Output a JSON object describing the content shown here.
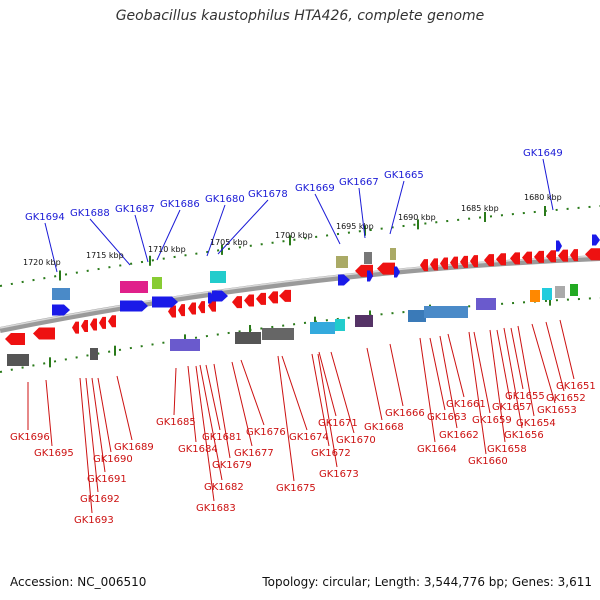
{
  "title": "Geobacillus kaustophilus HTA426, complete genome",
  "accession": "Accession: NC_006510",
  "topology": "Topology: circular; Length: 3,544,776 bp; Genes: 3,611",
  "colors": {
    "backbone": "#8c8c8c",
    "forward_label": "#1a1ad6",
    "reverse_label": "#cc1111",
    "forward_gene": "#1a1ae8",
    "reverse_gene": "#ee1111",
    "tick": "#2a7a1a"
  },
  "kbp_labels": [
    "1720 kbp",
    "1715 kbp",
    "1710 kbp",
    "1705 kbp",
    "1700 kbp",
    "1695 kbp",
    "1690 kbp",
    "1685 kbp",
    "1680 kbp"
  ],
  "forward_genes": [
    "GK1694",
    "GK1688",
    "GK1687",
    "GK1686",
    "GK1680",
    "GK1678",
    "GK1669",
    "GK1667",
    "GK1665",
    "GK1649"
  ],
  "reverse_genes": [
    "GK1696",
    "GK1695",
    "GK1690",
    "GK1691",
    "GK1692",
    "GK1693",
    "GK1689",
    "GK1685",
    "GK1684",
    "GK1681",
    "GK1679",
    "GK1682",
    "GK1683",
    "GK1676",
    "GK1677",
    "GK1674",
    "GK1675",
    "GK1672",
    "GK1673",
    "GK1671",
    "GK1670",
    "GK1668",
    "GK1666",
    "GK1664",
    "GK1663",
    "GK1662",
    "GK1661",
    "GK1660",
    "GK1659",
    "GK1658",
    "GK1657",
    "GK1656",
    "GK1655",
    "GK1654",
    "GK1653",
    "GK1652",
    "GK1651"
  ]
}
